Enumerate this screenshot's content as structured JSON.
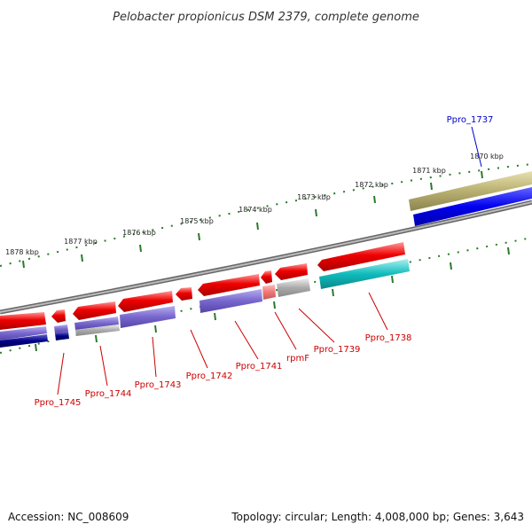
{
  "title": "Pelobacter propionicus DSM 2379, complete genome",
  "footer": {
    "accession": "Accession: NC_008609",
    "summary": "Topology: circular; Length: 4,008,000 bp; Genes: 3,643"
  },
  "ticks": [
    "1870 kbp",
    "1871 kbp",
    "1872 kbp",
    "1873 kbp",
    "1874 kbp",
    "1875 kbp",
    "1876 kbp",
    "1877 kbp",
    "1878 kbp"
  ],
  "gene_labels": {
    "ppro1737": "Ppro_1737",
    "ppro1738": "Ppro_1738",
    "ppro1739": "Ppro_1739",
    "rpmf": "rpmF",
    "ppro1741": "Ppro_1741",
    "ppro1742": "Ppro_1742",
    "ppro1743": "Ppro_1743",
    "ppro1744": "Ppro_1744",
    "ppro1745": "Ppro_1745"
  },
  "colors": {
    "red": "#ee0000",
    "purple": "#7766cc",
    "navy": "#000088",
    "gray": "#aaaaaa",
    "cyan": "#11bbbb",
    "blue": "#0000ee",
    "olive": "#b8b070",
    "backbone": "#888888",
    "tick": "#2a7a2a"
  }
}
